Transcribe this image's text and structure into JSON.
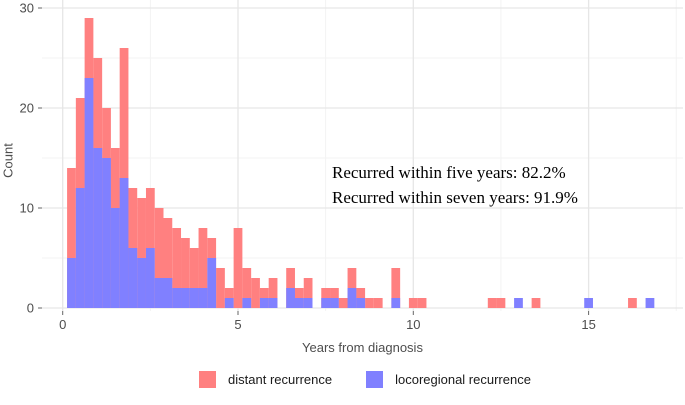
{
  "chart_data": {
    "type": "bar",
    "subtype": "overlaid-histogram",
    "title": "",
    "xlabel": "Years from diagnosis",
    "ylabel": "Count",
    "x_ticks": [
      0,
      5,
      10,
      15
    ],
    "y_ticks": [
      0,
      10,
      20,
      30
    ],
    "x_minor_gridlines": [
      2.5,
      7.5,
      12.5,
      17.5
    ],
    "y_minor_gridlines": [
      5,
      15,
      25
    ],
    "xlim": [
      -0.6,
      17.7
    ],
    "ylim": [
      0,
      31
    ],
    "bin_width": 0.25,
    "grid": true,
    "legend_position": "bottom",
    "series_names": [
      "distant recurrence",
      "locoregional recurrence"
    ],
    "bins": [
      {
        "x": 0.25,
        "distant": 14,
        "locoregional": 5
      },
      {
        "x": 0.5,
        "distant": 21,
        "locoregional": 12
      },
      {
        "x": 0.75,
        "distant": 29,
        "locoregional": 23
      },
      {
        "x": 1.0,
        "distant": 25,
        "locoregional": 16
      },
      {
        "x": 1.25,
        "distant": 20,
        "locoregional": 15
      },
      {
        "x": 1.5,
        "distant": 16,
        "locoregional": 10
      },
      {
        "x": 1.75,
        "distant": 26,
        "locoregional": 13
      },
      {
        "x": 2.0,
        "distant": 12,
        "locoregional": 6
      },
      {
        "x": 2.25,
        "distant": 11,
        "locoregional": 5
      },
      {
        "x": 2.5,
        "distant": 12,
        "locoregional": 6
      },
      {
        "x": 2.75,
        "distant": 10,
        "locoregional": 3
      },
      {
        "x": 3.0,
        "distant": 9,
        "locoregional": 3
      },
      {
        "x": 3.25,
        "distant": 8,
        "locoregional": 2
      },
      {
        "x": 3.5,
        "distant": 7,
        "locoregional": 2
      },
      {
        "x": 3.75,
        "distant": 6,
        "locoregional": 2
      },
      {
        "x": 4.0,
        "distant": 8,
        "locoregional": 2
      },
      {
        "x": 4.25,
        "distant": 7,
        "locoregional": 5
      },
      {
        "x": 4.5,
        "distant": 4,
        "locoregional": 0
      },
      {
        "x": 4.75,
        "distant": 2,
        "locoregional": 1
      },
      {
        "x": 5.0,
        "distant": 8,
        "locoregional": 0
      },
      {
        "x": 5.25,
        "distant": 4,
        "locoregional": 1
      },
      {
        "x": 5.5,
        "distant": 3,
        "locoregional": 0
      },
      {
        "x": 5.75,
        "distant": 2,
        "locoregional": 1
      },
      {
        "x": 6.0,
        "distant": 3,
        "locoregional": 1
      },
      {
        "x": 6.5,
        "distant": 4,
        "locoregional": 2
      },
      {
        "x": 6.75,
        "distant": 2,
        "locoregional": 1
      },
      {
        "x": 7.0,
        "distant": 3,
        "locoregional": 1
      },
      {
        "x": 7.5,
        "distant": 2,
        "locoregional": 1
      },
      {
        "x": 7.75,
        "distant": 2,
        "locoregional": 1
      },
      {
        "x": 8.0,
        "distant": 1,
        "locoregional": 0
      },
      {
        "x": 8.25,
        "distant": 4,
        "locoregional": 2
      },
      {
        "x": 8.5,
        "distant": 2,
        "locoregional": 1
      },
      {
        "x": 8.75,
        "distant": 1,
        "locoregional": 0
      },
      {
        "x": 9.0,
        "distant": 1,
        "locoregional": 0
      },
      {
        "x": 9.5,
        "distant": 4,
        "locoregional": 1
      },
      {
        "x": 10.0,
        "distant": 1,
        "locoregional": 0
      },
      {
        "x": 10.25,
        "distant": 1,
        "locoregional": 0
      },
      {
        "x": 12.25,
        "distant": 1,
        "locoregional": 0
      },
      {
        "x": 12.5,
        "distant": 1,
        "locoregional": 0
      },
      {
        "x": 13.0,
        "distant": 0,
        "locoregional": 1
      },
      {
        "x": 13.5,
        "distant": 1,
        "locoregional": 0
      },
      {
        "x": 15.0,
        "distant": 0,
        "locoregional": 1
      },
      {
        "x": 16.25,
        "distant": 1,
        "locoregional": 0
      },
      {
        "x": 16.75,
        "distant": 0,
        "locoregional": 1
      }
    ],
    "annotations": [
      "Recurred within five years: 82.2%",
      "Recurred within seven years: 91.9%"
    ]
  },
  "axes": {
    "x_title": "Years from diagnosis",
    "y_title": "Count"
  },
  "legend": {
    "items": [
      {
        "label": "distant recurrence",
        "color": "#FF8080"
      },
      {
        "label": "locoregional recurrence",
        "color": "#8080FF"
      }
    ]
  },
  "colors": {
    "distant": "#FF8080",
    "locoregional": "#8080FF",
    "grid_major": "#E6E6E6",
    "grid_minor": "#F3F3F3",
    "tick_mark": "#666666",
    "axis_text": "#4d4d4d",
    "background": "#ffffff"
  }
}
